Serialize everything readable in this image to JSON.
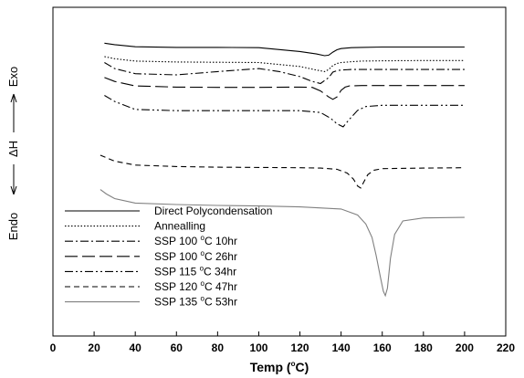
{
  "chart_data": {
    "type": "line",
    "xlabel": "Temp (°C)",
    "xlabel_parts": {
      "pre": "Temp (",
      "sup": "o",
      "post": "C)"
    },
    "ylabel": "Endo ← ΔH → Exo",
    "ylabel_parts": {
      "endo": "Endo",
      "dh": "ΔH",
      "exo": "Exo"
    },
    "xlim": [
      0,
      220
    ],
    "x_ticks": [
      0,
      20,
      40,
      60,
      80,
      100,
      120,
      140,
      160,
      180,
      200,
      220
    ],
    "y_ticks_shown": false,
    "grid": false,
    "legend_position": "bottom-left",
    "series": [
      {
        "name": "Direct Polycondensation",
        "legend": {
          "pre": "Direct Polycondensation",
          "sup": "",
          "post": ""
        },
        "style": "solid",
        "color": "#000000",
        "x": [
          25,
          30,
          40,
          60,
          80,
          100,
          120,
          128,
          132,
          134,
          136,
          138,
          140,
          145,
          150,
          160,
          180,
          200
        ],
        "y": [
          -2.0,
          -2.5,
          -3.2,
          -3.4,
          -3.4,
          -3.5,
          -4.8,
          -5.6,
          -6.2,
          -6.0,
          -5.0,
          -4.2,
          -3.8,
          -3.5,
          -3.4,
          -3.3,
          -3.3,
          -3.3
        ]
      },
      {
        "name": "Annealling",
        "legend": {
          "pre": "Annealling",
          "sup": "",
          "post": ""
        },
        "style": "dotted",
        "color": "#000000",
        "x": [
          25,
          30,
          40,
          60,
          80,
          100,
          120,
          128,
          132,
          134,
          136,
          138,
          140,
          145,
          150,
          160,
          180,
          200
        ],
        "y": [
          -6.5,
          -7.2,
          -8.0,
          -8.3,
          -8.4,
          -8.5,
          -9.8,
          -11.0,
          -11.5,
          -10.8,
          -9.5,
          -8.8,
          -8.5,
          -8.2,
          -8.0,
          -7.9,
          -7.8,
          -7.8
        ]
      },
      {
        "name": "SSP 100 °C 10hr",
        "legend": {
          "pre": "SSP 100 ",
          "sup": "o",
          "post": "C 10hr"
        },
        "style": "dashdot",
        "color": "#000000",
        "x": [
          25,
          30,
          40,
          60,
          80,
          100,
          110,
          120,
          126,
          130,
          134,
          136,
          138,
          140,
          145,
          150,
          160,
          180,
          200
        ],
        "y": [
          -8.5,
          -10.5,
          -12.2,
          -12.6,
          -11.5,
          -10.5,
          -11.5,
          -13.2,
          -14.8,
          -15.5,
          -13.5,
          -11.7,
          -11.2,
          -11.0,
          -10.8,
          -10.8,
          -10.8,
          -10.8,
          -10.8
        ]
      },
      {
        "name": "SSP 100 °C 26hr",
        "legend": {
          "pre": "SSP 100 ",
          "sup": "o",
          "post": "C 26hr"
        },
        "style": "longdash",
        "color": "#000000",
        "x": [
          25,
          30,
          40,
          60,
          80,
          100,
          120,
          126,
          130,
          134,
          136,
          138,
          140,
          142,
          144,
          150,
          160,
          180,
          200
        ],
        "y": [
          -13.5,
          -14.8,
          -16.3,
          -16.7,
          -16.8,
          -16.8,
          -16.7,
          -16.8,
          -18.0,
          -20.0,
          -20.8,
          -20.0,
          -17.8,
          -16.7,
          -16.3,
          -16.2,
          -16.2,
          -16.2,
          -16.2
        ]
      },
      {
        "name": "SSP 115 °C 34hr",
        "legend": {
          "pre": "SSP 115 ",
          "sup": "o",
          "post": "C 34hr"
        },
        "style": "dashdotdot",
        "color": "#000000",
        "x": [
          25,
          30,
          40,
          60,
          80,
          100,
          120,
          130,
          135,
          138,
          141,
          144,
          148,
          152,
          160,
          180,
          200
        ],
        "y": [
          -19.5,
          -21.5,
          -24.2,
          -24.6,
          -24.6,
          -24.6,
          -24.6,
          -25.2,
          -27.2,
          -29.0,
          -30.0,
          -27.5,
          -24.5,
          -23.2,
          -22.8,
          -22.8,
          -22.8
        ]
      },
      {
        "name": "SSP 120 °C 47hr",
        "legend": {
          "pre": "SSP 120 ",
          "sup": "o",
          "post": "C 47hr"
        },
        "style": "dashed",
        "color": "#000000",
        "x": [
          23,
          30,
          40,
          60,
          80,
          100,
          120,
          130,
          138,
          143,
          146,
          148,
          149.5,
          151,
          153,
          156,
          160,
          180,
          200
        ],
        "y": [
          -39.5,
          -41.5,
          -42.8,
          -43.3,
          -43.5,
          -43.6,
          -43.7,
          -43.8,
          -44.2,
          -45.5,
          -47.5,
          -49.8,
          -50.5,
          -48.5,
          -46.0,
          -44.5,
          -44.0,
          -43.8,
          -43.7
        ]
      },
      {
        "name": "SSP 135 °C 53hr",
        "legend": {
          "pre": "SSP 135 ",
          "sup": "o",
          "post": "C 53hr"
        },
        "style": "solid",
        "color": "#808080",
        "x": [
          23,
          26,
          30,
          40,
          60,
          80,
          100,
          120,
          140,
          148,
          152,
          155,
          157,
          159,
          160.5,
          161.5,
          162.5,
          164,
          166,
          170,
          180,
          200
        ],
        "y": [
          -51.0,
          -52.5,
          -54.0,
          -55.5,
          -56.0,
          -56.3,
          -56.5,
          -56.8,
          -57.5,
          -59.5,
          -62.5,
          -67.0,
          -73.0,
          -80.0,
          -85.0,
          -86.5,
          -84.0,
          -74.0,
          -66.0,
          -61.5,
          -60.5,
          -60.3
        ]
      }
    ]
  }
}
